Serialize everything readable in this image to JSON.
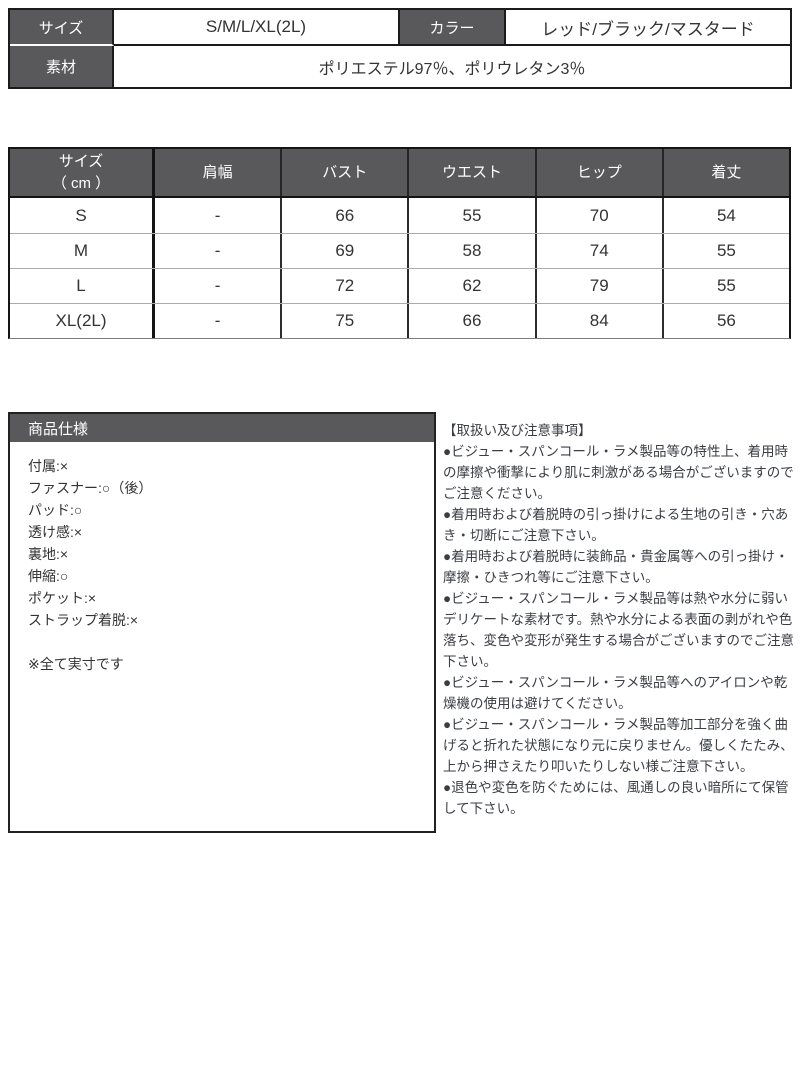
{
  "colors": {
    "header_bg": "#59595b",
    "border_dark": "#1b1b1b",
    "row_divider": "#ababab",
    "text": "#333333",
    "header_text": "#ffffff"
  },
  "top_table": {
    "size_label": "サイズ",
    "size_value": "S/M/L/XL(2L)",
    "color_label": "カラー",
    "color_value": "レッド/ブラック/マスタード",
    "material_label": "素材",
    "material_value": "ポリエステル97％、ポリウレタン3％"
  },
  "size_table": {
    "header_col1_line1": "サイズ",
    "header_col1_line2": "（ cm ）",
    "columns": [
      "肩幅",
      "バスト",
      "ウエスト",
      "ヒップ",
      "着丈"
    ],
    "rows": [
      [
        "S",
        "-",
        "66",
        "55",
        "70",
        "54"
      ],
      [
        "M",
        "-",
        "69",
        "58",
        "74",
        "55"
      ],
      [
        "L",
        "-",
        "72",
        "62",
        "79",
        "55"
      ],
      [
        "XL(2L)",
        "-",
        "75",
        "66",
        "84",
        "56"
      ]
    ]
  },
  "spec_box": {
    "title": "商品仕様",
    "items": [
      "付属:×",
      "ファスナー:○（後）",
      "パッド:○",
      "透け感:×",
      "裏地:×",
      "伸縮:○",
      "ポケット:×",
      "ストラップ着脱:×"
    ],
    "note": "※全て実寸です"
  },
  "notes": {
    "title": "【取扱い及び注意事項】",
    "items": [
      "●ビジュー・スパンコール・ラメ製品等の特性上、着用時の摩擦や衝撃により肌に刺激がある場合がございますのでご注意ください。",
      "●着用時および着脱時の引っ掛けによる生地の引き・穴あき・切断にご注意下さい。",
      "●着用時および着脱時に装飾品・貴金属等への引っ掛け・摩擦・ひきつれ等にご注意下さい。",
      "●ビジュー・スパンコール・ラメ製品等は熱や水分に弱いデリケートな素材です。熱や水分による表面の剥がれや色落ち、変色や変形が発生する場合がございますのでご注意下さい。",
      "●ビジュー・スパンコール・ラメ製品等へのアイロンや乾燥機の使用は避けてください。",
      "●ビジュー・スパンコール・ラメ製品等加工部分を強く曲げると折れた状態になり元に戻りません。優しくたたみ、上から押さえたり叩いたりしない様ご注意下さい。",
      "●退色や変色を防ぐためには、風通しの良い暗所にて保管して下さい。"
    ]
  }
}
